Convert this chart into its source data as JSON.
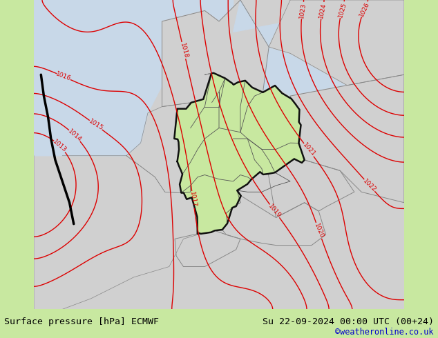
{
  "title_left": "Surface pressure [hPa] ECMWF",
  "title_right": "Su 22-09-2024 00:00 UTC (00+24)",
  "credit": "©weatheronline.co.uk",
  "land_color": "#c8e8a0",
  "sea_color": "#d0d0d0",
  "germany_color": "#b8e070",
  "border_color": "#111111",
  "state_color": "#444444",
  "neighbor_color": "#c0c0c0",
  "contour_color": "#dd0000",
  "front_color": "#000000",
  "bottom_text_color": "#000000",
  "credit_color": "#0000cc",
  "figsize": [
    6.34,
    4.9
  ],
  "dpi": 100,
  "xlim": [
    -4.0,
    22.0
  ],
  "ylim": [
    44.0,
    58.5
  ],
  "pressure_min": 1013,
  "pressure_max": 1026
}
